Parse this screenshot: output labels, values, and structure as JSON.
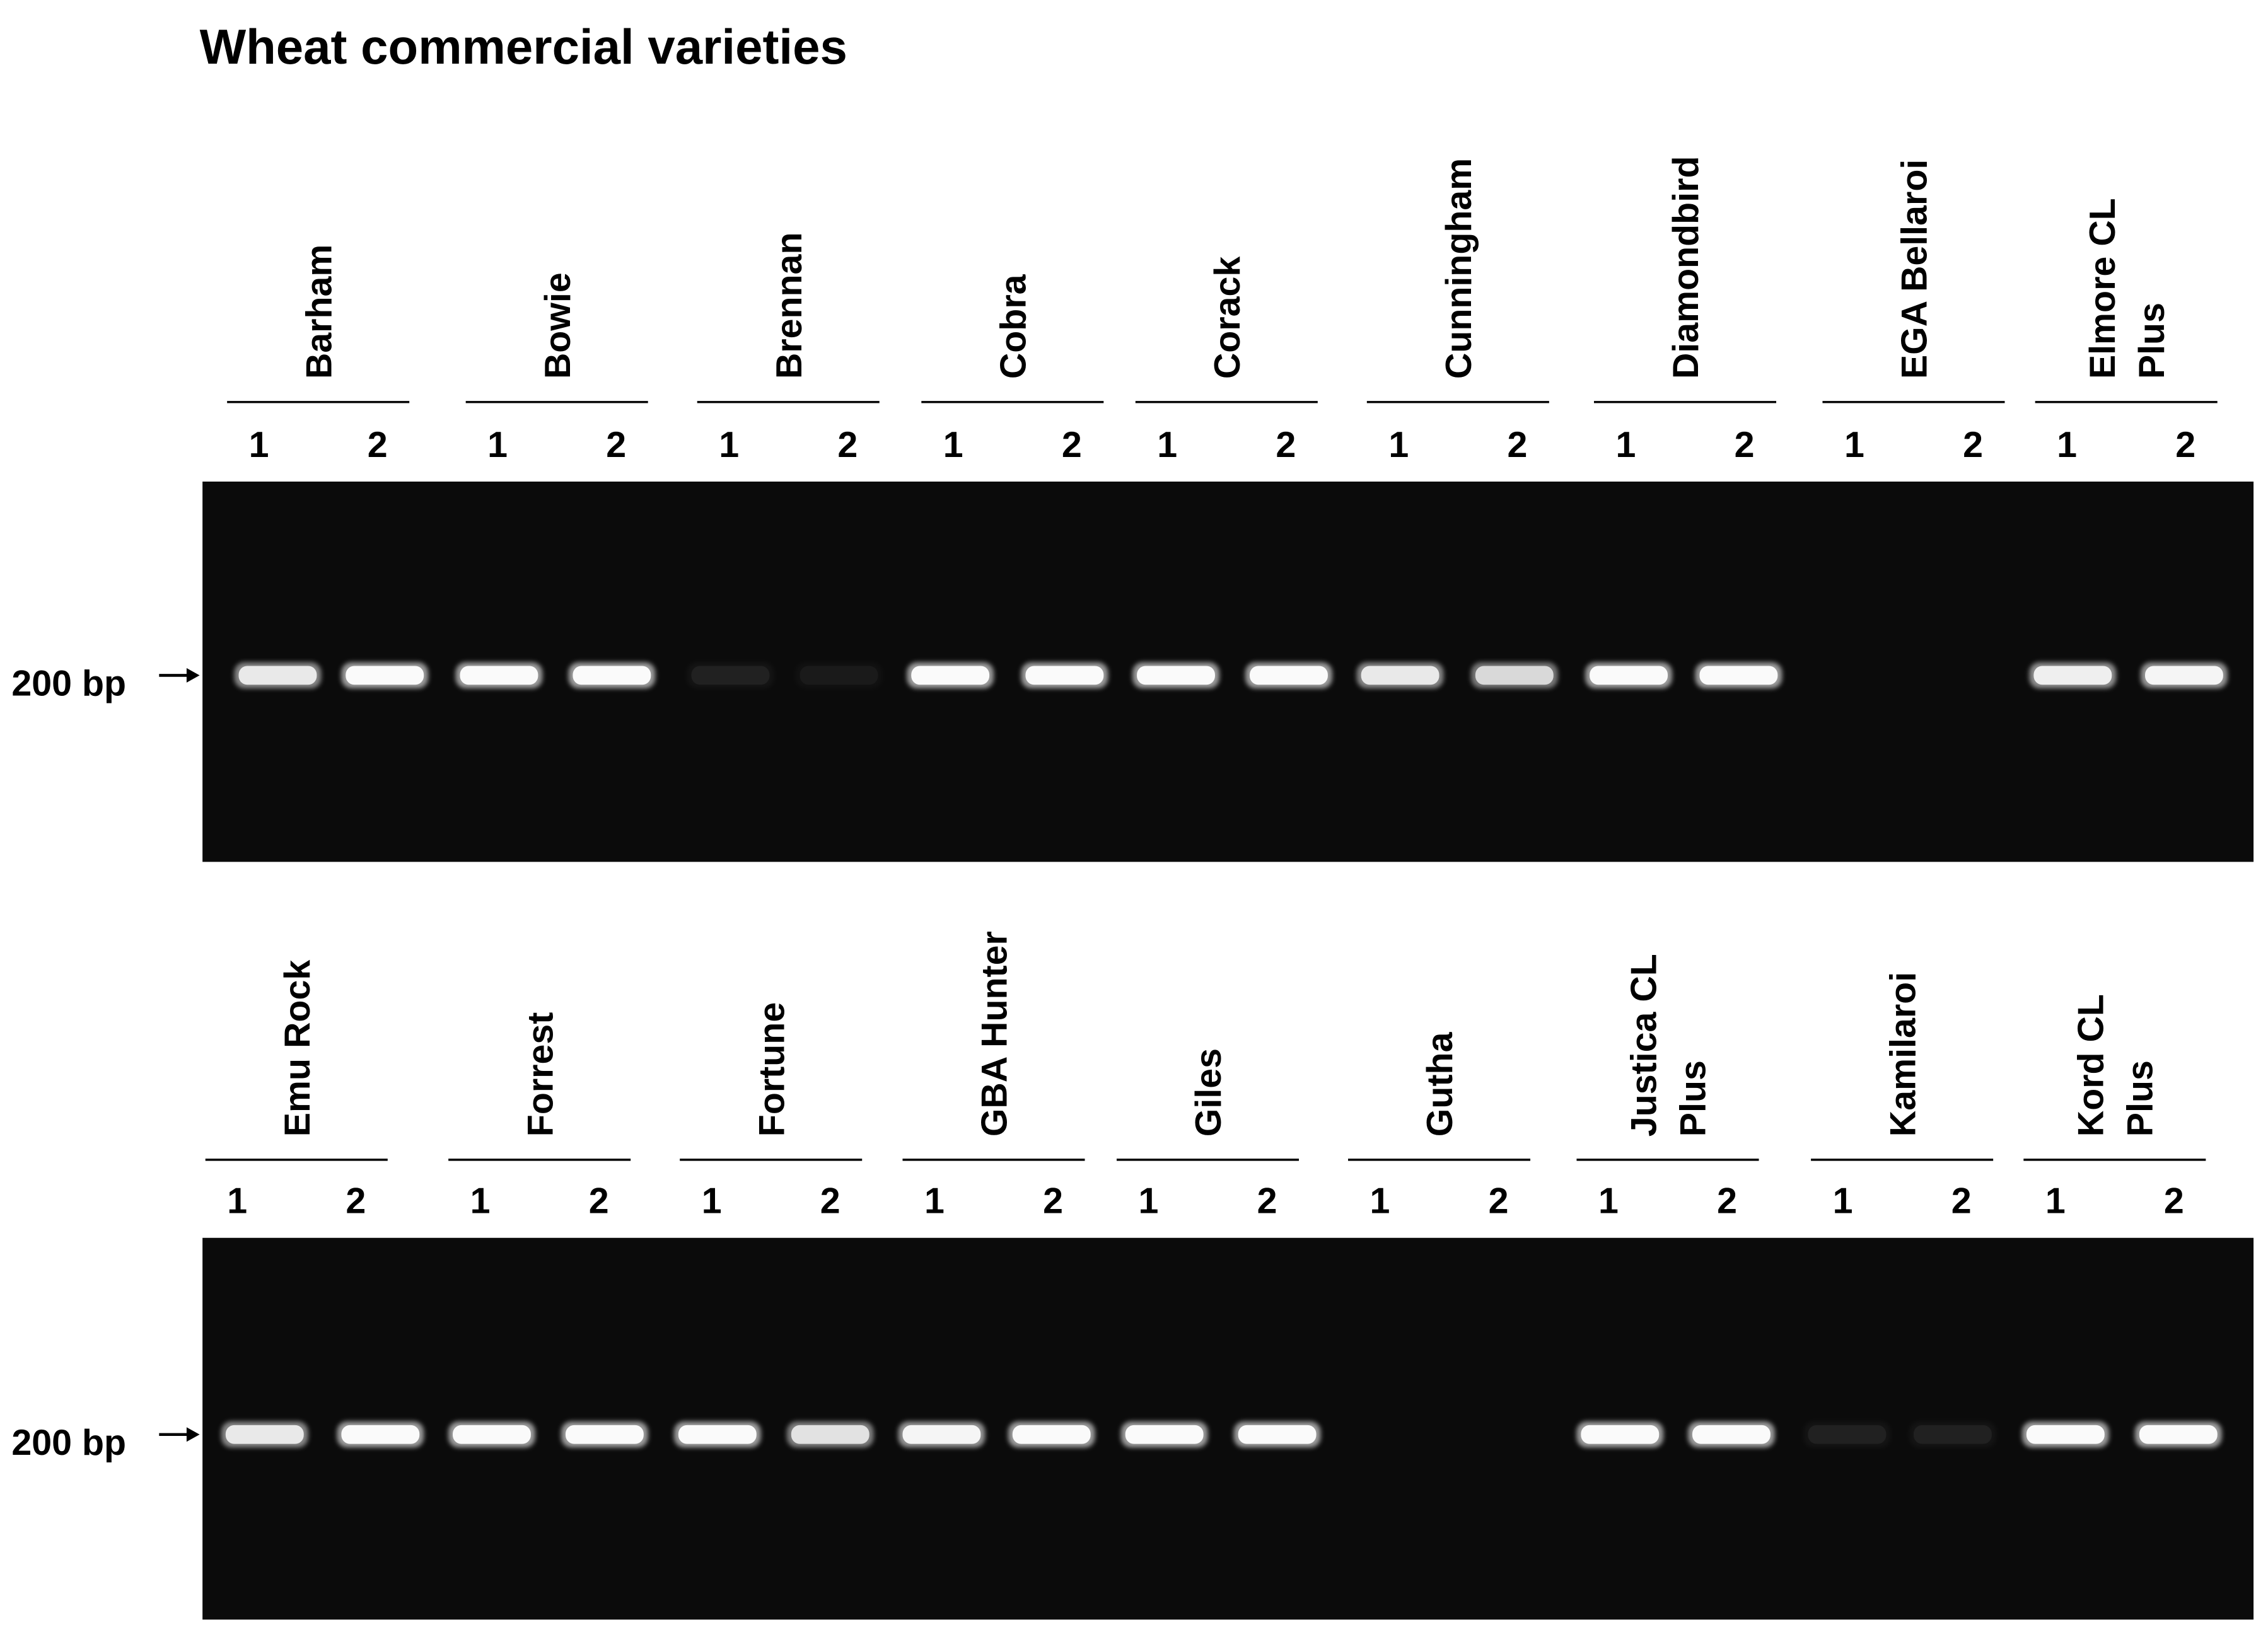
{
  "title": "Wheat commercial varieties",
  "marker_label": "200 bp",
  "panels": [
    {
      "varieties": [
        {
          "lines": [
            "Barham"
          ],
          "lanes": [
            "1",
            "2"
          ]
        },
        {
          "lines": [
            "Bowie"
          ],
          "lanes": [
            "1",
            "2"
          ]
        },
        {
          "lines": [
            "Brennan"
          ],
          "lanes": [
            "1",
            "2"
          ]
        },
        {
          "lines": [
            "Cobra"
          ],
          "lanes": [
            "1",
            "2"
          ]
        },
        {
          "lines": [
            "Corack"
          ],
          "lanes": [
            "1",
            "2"
          ]
        },
        {
          "lines": [
            "Cunningham"
          ],
          "lanes": [
            "1",
            "2"
          ]
        },
        {
          "lines": [
            "Diamondbird"
          ],
          "lanes": [
            "1",
            "2"
          ]
        },
        {
          "lines": [
            "EGA Bellaroi"
          ],
          "lanes": [
            "1",
            "2"
          ]
        },
        {
          "lines": [
            "Elmore CL",
            "Plus"
          ],
          "lanes": [
            "1",
            "2"
          ]
        }
      ]
    },
    {
      "varieties": [
        {
          "lines": [
            "Emu Rock"
          ],
          "lanes": [
            "1",
            "2"
          ]
        },
        {
          "lines": [
            "Forrest"
          ],
          "lanes": [
            "1",
            "2"
          ]
        },
        {
          "lines": [
            "Fortune"
          ],
          "lanes": [
            "1",
            "2"
          ]
        },
        {
          "lines": [
            "GBA Hunter"
          ],
          "lanes": [
            "1",
            "2"
          ]
        },
        {
          "lines": [
            "Giles"
          ],
          "lanes": [
            "1",
            "2"
          ]
        },
        {
          "lines": [
            "Gutha"
          ],
          "lanes": [
            "1",
            "2"
          ]
        },
        {
          "lines": [
            "Justica CL",
            "Plus"
          ],
          "lanes": [
            "1",
            "2"
          ]
        },
        {
          "lines": [
            "Kamilaroi"
          ],
          "lanes": [
            "1",
            "2"
          ]
        },
        {
          "lines": [
            "Kord CL",
            "Plus"
          ],
          "lanes": [
            "1",
            "2"
          ]
        }
      ]
    }
  ]
}
